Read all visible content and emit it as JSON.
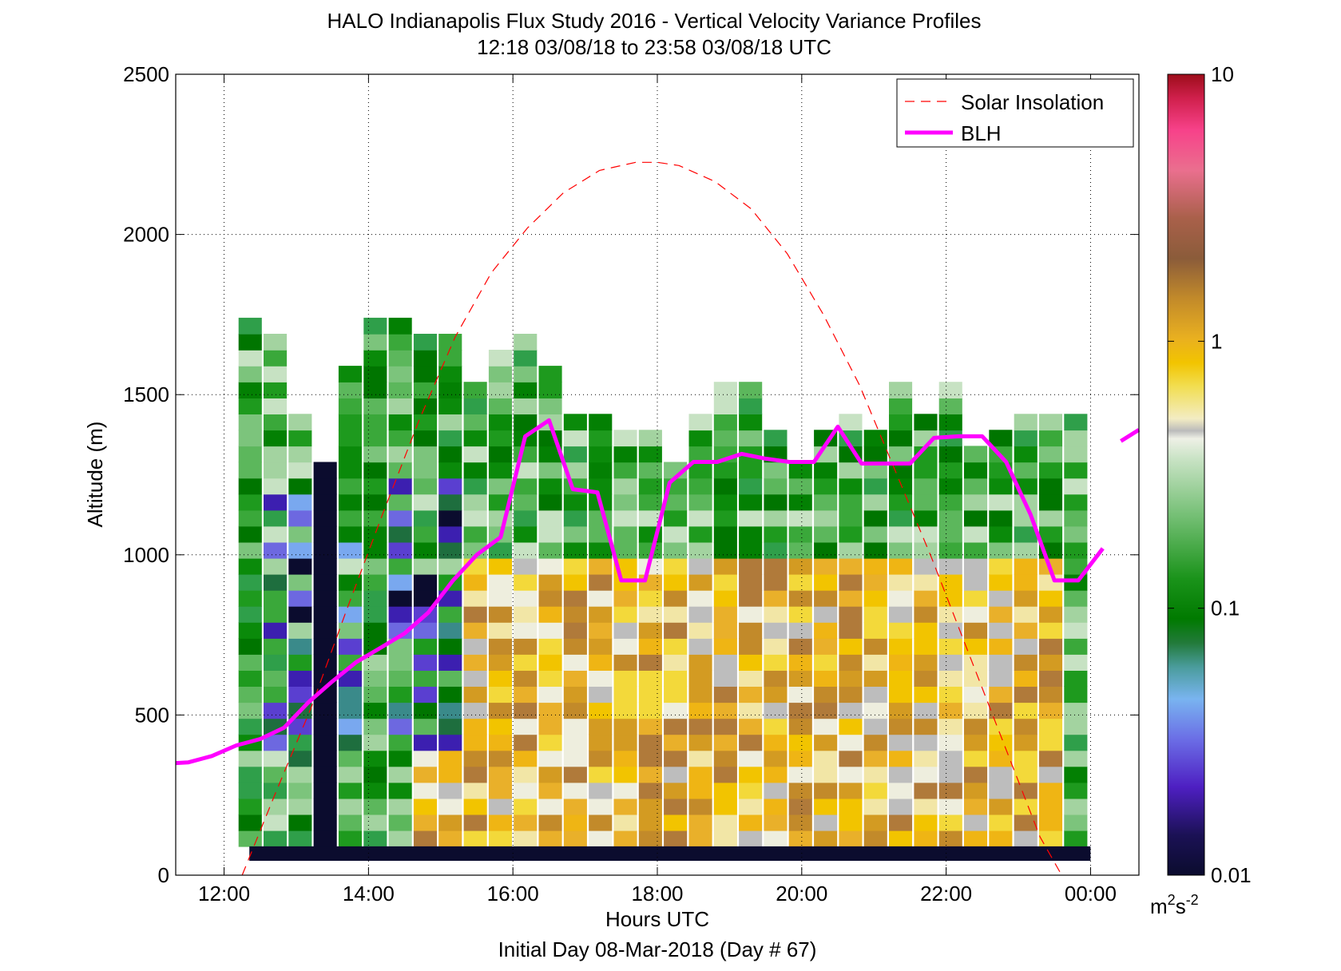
{
  "chart_data": {
    "type": "heatmap",
    "title": "HALO Indianapolis Flux Study 2016 - Vertical Velocity Variance Profiles",
    "subtitle": "12:18 03/08/18 to 23:58 03/08/18  UTC",
    "xlabel": "Hours UTC",
    "xlabel2": "Initial Day 08-Mar-2018 (Day # 67)",
    "ylabel": "Altitude (m)",
    "xlim": [
      11.33,
      24.67
    ],
    "ylim": [
      0,
      2500
    ],
    "grid": true,
    "legend_position": "top-right",
    "x_ticks": [
      {
        "value": 12,
        "label": "12:00"
      },
      {
        "value": 14,
        "label": "14:00"
      },
      {
        "value": 16,
        "label": "16:00"
      },
      {
        "value": 18,
        "label": "18:00"
      },
      {
        "value": 20,
        "label": "20:00"
      },
      {
        "value": 22,
        "label": "22:00"
      },
      {
        "value": 24,
        "label": "00:00"
      }
    ],
    "y_ticks": [
      {
        "value": 0,
        "label": "0"
      },
      {
        "value": 500,
        "label": "500"
      },
      {
        "value": 1000,
        "label": "1000"
      },
      {
        "value": 1500,
        "label": "1500"
      },
      {
        "value": 2000,
        "label": "2000"
      },
      {
        "value": 2500,
        "label": "2500"
      }
    ],
    "colorbar": {
      "scale": "log",
      "range": [
        0.01,
        10
      ],
      "ticks": [
        {
          "value": 0.01,
          "label": "0.01"
        },
        {
          "value": 0.1,
          "label": "0.1"
        },
        {
          "value": 1,
          "label": "1"
        },
        {
          "value": 10,
          "label": "10"
        }
      ],
      "unit_base": "m",
      "unit_sup1": "2",
      "unit_mid": "s",
      "unit_sup2": "-2"
    },
    "series": [
      {
        "name": "Solar Insolation",
        "style": "dashed",
        "color": "#ff0000",
        "x": [
          12.25,
          12.7,
          13.2,
          13.7,
          14.2,
          14.7,
          15.2,
          15.7,
          16.2,
          16.7,
          17.2,
          17.7,
          18.0,
          18.3,
          18.8,
          19.3,
          19.8,
          20.3,
          20.8,
          21.3,
          21.8,
          22.3,
          22.8,
          23.3,
          23.6
        ],
        "y": [
          0,
          250,
          520,
          830,
          1130,
          1420,
          1680,
          1880,
          2020,
          2130,
          2200,
          2225,
          2225,
          2215,
          2165,
          2080,
          1940,
          1750,
          1530,
          1260,
          990,
          700,
          410,
          120,
          0
        ]
      },
      {
        "name": "BLH",
        "style": "solid",
        "color": "#ff00ff",
        "x": [
          11.33,
          11.5,
          11.83,
          12.17,
          12.5,
          12.83,
          13.17,
          13.5,
          13.83,
          14.17,
          14.5,
          14.83,
          15.17,
          15.5,
          15.83,
          16.17,
          16.5,
          16.83,
          17.17,
          17.5,
          17.83,
          18.17,
          18.5,
          18.83,
          19.17,
          19.5,
          19.83,
          20.17,
          20.5,
          20.83,
          21.17,
          21.5,
          21.83,
          22.17,
          22.5,
          22.83,
          23.17,
          23.5,
          23.83,
          24.17
        ],
        "y": [
          350,
          352,
          372,
          405,
          425,
          460,
          540,
          605,
          665,
          710,
          755,
          820,
          920,
          1000,
          1055,
          1370,
          1420,
          1205,
          1195,
          920,
          920,
          1225,
          1290,
          1290,
          1315,
          1300,
          1290,
          1290,
          1400,
          1285,
          1285,
          1285,
          1365,
          1370,
          1370,
          1290,
          1125,
          920,
          920,
          1020
        ]
      },
      {
        "name": "",
        "style": "solid",
        "color": "#ff00ff",
        "x": [
          24.42,
          24.67
        ],
        "y": [
          1355,
          1390
        ]
      }
    ]
  }
}
